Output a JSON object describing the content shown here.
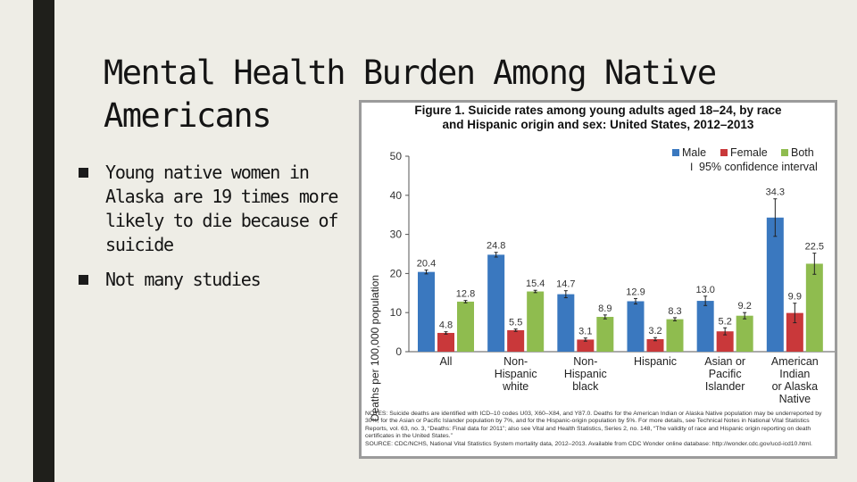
{
  "slide": {
    "title_line1": "Mental Health Burden Among Native",
    "title_line2": "Americans",
    "bullets": [
      "Young native women in Alaska are 19 times more likely to die because of suicide",
      "Not many studies"
    ]
  },
  "figure": {
    "title_line1": "Figure 1. Suicide rates among young adults aged 18–24, by race",
    "title_line2": "and Hispanic origin and sex: United States, 2012–2013",
    "notes": [
      "NOTES: Suicide deaths are identified with ICD–10 codes U03, X60–X84, and Y87.0. Deaths for the American Indian or Alaska Native population may be underreported by 30%, for the Asian or Pacific Islander population by 7%, and for the Hispanic-origin population by 5%. For more details, see Technical Notes in National Vital Statistics Reports, vol. 63, no. 3, “Deaths: Final data for 2011”; also see Vital and Health Statistics, Series 2, no. 148, “The validity of race and Hispanic origin reporting on death certificates in the United States.”",
      "SOURCE: CDC/NCHS, National Vital Statistics System mortality data, 2012–2013. Available from CDC Wonder online database: http://wonder.cdc.gov/ucd-icd10.html."
    ]
  },
  "chart_data": {
    "type": "bar",
    "title": "Figure 1. Suicide rates among young adults aged 18–24, by race and Hispanic origin and sex: United States, 2012–2013",
    "xlabel": "",
    "ylabel": "Deaths per 100,000 population",
    "ylim": [
      0,
      50
    ],
    "yticks": [
      "0",
      "10",
      "20",
      "30",
      "40",
      "50"
    ],
    "ytick_values": [
      0,
      10,
      20,
      30,
      40,
      50
    ],
    "categories": [
      [
        "All"
      ],
      [
        "Non-",
        "Hispanic",
        "white"
      ],
      [
        "Non-",
        "Hispanic",
        "black"
      ],
      [
        "Hispanic"
      ],
      [
        "Asian or",
        "Pacific",
        "Islander"
      ],
      [
        "American",
        "Indian",
        "or Alaska",
        "Native"
      ]
    ],
    "series": [
      {
        "name": "Male",
        "color": "#3a78bf",
        "values": [
          20.4,
          24.8,
          14.7,
          12.9,
          13.0,
          34.3
        ],
        "labels": [
          "20.4",
          "24.8",
          "14.7",
          "12.9",
          "13.0",
          "34.3"
        ],
        "ci": [
          [
            19.9,
            20.9
          ],
          [
            24.2,
            25.4
          ],
          [
            13.8,
            15.6
          ],
          [
            12.2,
            13.6
          ],
          [
            11.8,
            14.2
          ],
          [
            29.5,
            39.1
          ]
        ]
      },
      {
        "name": "Female",
        "color": "#c9383a",
        "values": [
          4.8,
          5.5,
          3.1,
          3.2,
          5.2,
          9.9
        ],
        "labels": [
          "4.8",
          "5.5",
          "3.1",
          "3.2",
          "5.2",
          "9.9"
        ],
        "ci": [
          [
            4.5,
            5.1
          ],
          [
            5.2,
            5.8
          ],
          [
            2.7,
            3.5
          ],
          [
            2.8,
            3.6
          ],
          [
            4.3,
            6.1
          ],
          [
            7.4,
            12.4
          ]
        ]
      },
      {
        "name": "Both",
        "color": "#8fbc4f",
        "values": [
          12.8,
          15.4,
          8.9,
          8.3,
          9.2,
          22.5
        ],
        "labels": [
          "12.8",
          "15.4",
          "8.9",
          "8.3",
          "9.2",
          "22.5"
        ],
        "ci": [
          [
            12.5,
            13.1
          ],
          [
            15.1,
            15.7
          ],
          [
            8.4,
            9.4
          ],
          [
            7.9,
            8.7
          ],
          [
            8.4,
            10.0
          ],
          [
            19.8,
            25.2
          ]
        ]
      }
    ],
    "ci_legend": "95% confidence interval",
    "ci_symbol": "I",
    "legend_position": "top-right",
    "grid": false
  }
}
